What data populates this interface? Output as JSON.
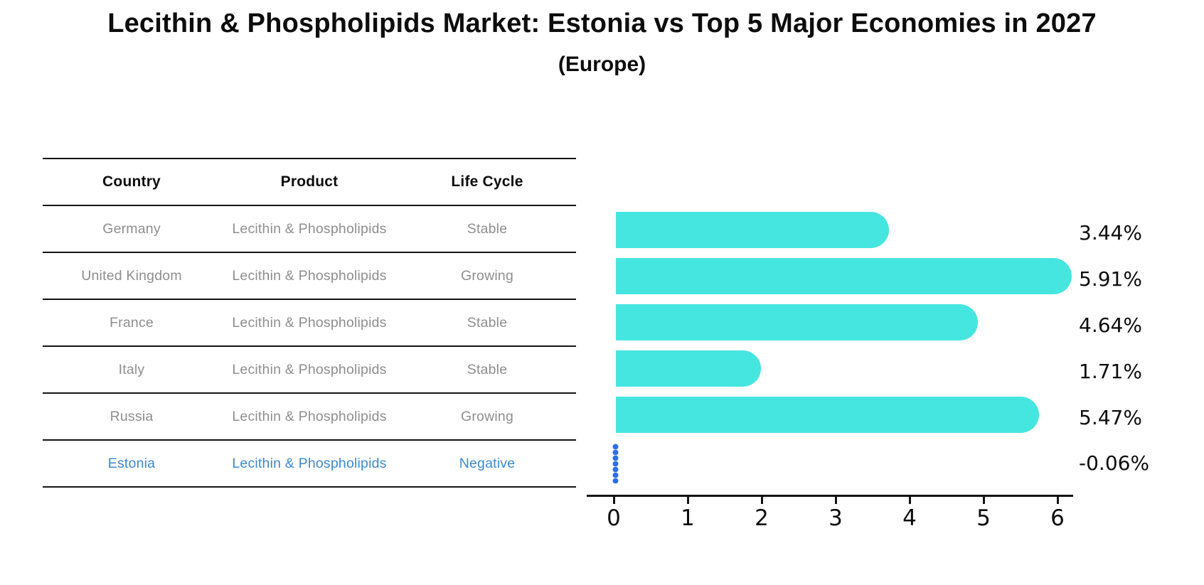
{
  "title": "Lecithin & Phospholipids Market: Estonia vs Top 5 Major Economies in 2027",
  "subtitle": "(Europe)",
  "colors": {
    "bar": "#46e6e0",
    "negative_marker": "#2f6fe3",
    "highlight_text": "#3d88cf",
    "body_text": "#8e8e8e",
    "heading_text": "#0d0d0d"
  },
  "table": {
    "headers": [
      "Country",
      "Product",
      "Life Cycle"
    ],
    "rows": [
      {
        "country": "Germany",
        "product": "Lecithin & Phospholipids",
        "life_cycle": "Stable",
        "highlight": false
      },
      {
        "country": "United Kingdom",
        "product": "Lecithin & Phospholipids",
        "life_cycle": "Growing",
        "highlight": false
      },
      {
        "country": "France",
        "product": "Lecithin & Phospholipids",
        "life_cycle": "Stable",
        "highlight": false
      },
      {
        "country": "Italy",
        "product": "Lecithin & Phospholipids",
        "life_cycle": "Stable",
        "highlight": false
      },
      {
        "country": "Russia",
        "product": "Lecithin & Phospholipids",
        "life_cycle": "Growing",
        "highlight": false
      },
      {
        "country": "Estonia",
        "product": "Lecithin & Phospholipids",
        "life_cycle": "Negative",
        "highlight": true
      }
    ]
  },
  "chart_data": {
    "type": "bar",
    "orientation": "horizontal",
    "title": "Lecithin & Phospholipids Market: Estonia vs Top 5 Major Economies in 2027 (Europe)",
    "categories": [
      "Germany",
      "United Kingdom",
      "France",
      "Italy",
      "Russia",
      "Estonia"
    ],
    "values": [
      3.44,
      5.91,
      4.64,
      1.71,
      5.47,
      -0.06
    ],
    "value_labels": [
      "3.44%",
      "5.91%",
      "4.64%",
      "1.71%",
      "5.47%",
      "-0.06%"
    ],
    "unit": "%",
    "xlabel": "",
    "ylabel": "",
    "xlim": [
      0,
      6
    ],
    "x_ticks": [
      0,
      1,
      2,
      3,
      4,
      5,
      6
    ],
    "grid": false,
    "legend": false,
    "negative_rendered_as": "blue dotted vertical marker at zero"
  }
}
